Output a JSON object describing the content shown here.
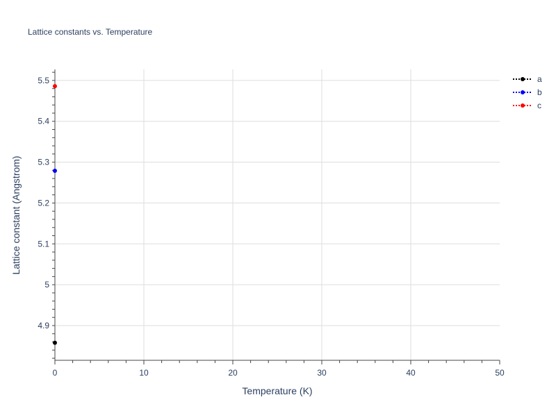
{
  "chart_data": {
    "type": "line",
    "title": "Lattice constants vs. Temperature",
    "xlabel": "Temperature (K)",
    "ylabel": "Lattice constant (Angstrom)",
    "xlim": [
      0,
      50
    ],
    "ylim": [
      4.815,
      5.527
    ],
    "xticks": [
      0,
      10,
      20,
      30,
      40,
      50
    ],
    "yticks": [
      4.9,
      5,
      5.1,
      5.2,
      5.3,
      5.4,
      5.5
    ],
    "ytick_labels": [
      "4.9",
      "5",
      "5.1",
      "5.2",
      "5.3",
      "5.4",
      "5.5"
    ],
    "grid": true,
    "legend_placement": "top-right",
    "series": [
      {
        "name": "a",
        "color": "#000000",
        "line_style": "dotted",
        "x": [
          0
        ],
        "y": [
          4.858
        ]
      },
      {
        "name": "b",
        "color": "#0000ff",
        "line_style": "dotted",
        "x": [
          0
        ],
        "y": [
          5.279
        ]
      },
      {
        "name": "c",
        "color": "#ff0000",
        "line_style": "dotted",
        "x": [
          0
        ],
        "y": [
          5.486
        ]
      }
    ]
  }
}
